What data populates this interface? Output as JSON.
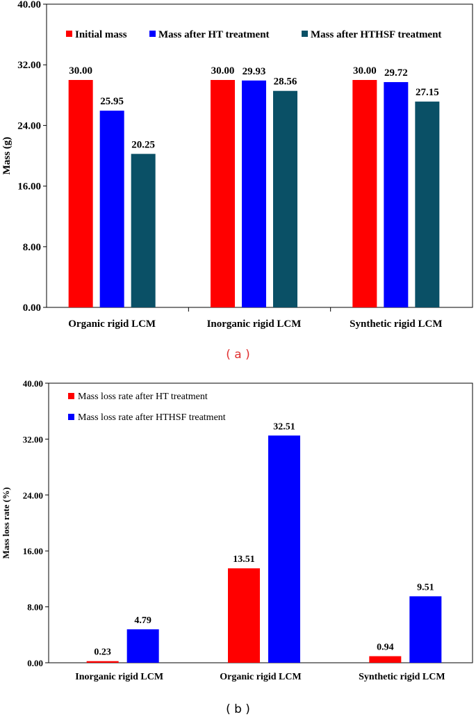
{
  "figure": {
    "caption_a": "( a )",
    "caption_b": "( b )"
  },
  "chart_data": [
    {
      "type": "bar",
      "ylabel": "Mass (g)",
      "ylim": [
        0,
        40
      ],
      "yticks": [
        "0.00",
        "8.00",
        "16.00",
        "24.00",
        "32.00",
        "40.00"
      ],
      "categories": [
        "Organic rigid LCM",
        "Inorganic rigid LCM",
        "Synthetic rigid LCM"
      ],
      "legend_position": "top",
      "series": [
        {
          "name": "Initial mass",
          "color": "#ff0000",
          "values": [
            30.0,
            30.0,
            30.0
          ],
          "labels": [
            "30.00",
            "30.00",
            "30.00"
          ]
        },
        {
          "name": "Mass after HT treatment",
          "color": "#0000ff",
          "values": [
            25.95,
            29.93,
            29.72
          ],
          "labels": [
            "25.95",
            "29.93",
            "29.72"
          ]
        },
        {
          "name": "Mass after HTHSF treatment",
          "color": "#0a5066",
          "values": [
            20.25,
            28.56,
            27.15
          ],
          "labels": [
            "20.25",
            "28.56",
            "27.15"
          ]
        }
      ],
      "grid": false
    },
    {
      "type": "bar",
      "ylabel": "Mass loss rate (%)",
      "ylim": [
        0,
        40
      ],
      "yticks": [
        "0.00",
        "8.00",
        "16.00",
        "24.00",
        "32.00",
        "40.00"
      ],
      "categories": [
        "Inorganic rigid LCM",
        "Organic rigid LCM",
        "Synthetic rigid LCM"
      ],
      "legend_position": "top-left",
      "series": [
        {
          "name": "Mass loss rate after HT treatment",
          "color": "#ff0000",
          "values": [
            0.23,
            13.51,
            0.94
          ],
          "labels": [
            "0.23",
            "13.51",
            "0.94"
          ]
        },
        {
          "name": "Mass loss rate after HTHSF treatment",
          "color": "#0000ff",
          "values": [
            4.79,
            32.51,
            9.51
          ],
          "labels": [
            "4.79",
            "32.51",
            "9.51"
          ]
        }
      ],
      "grid": false
    }
  ]
}
